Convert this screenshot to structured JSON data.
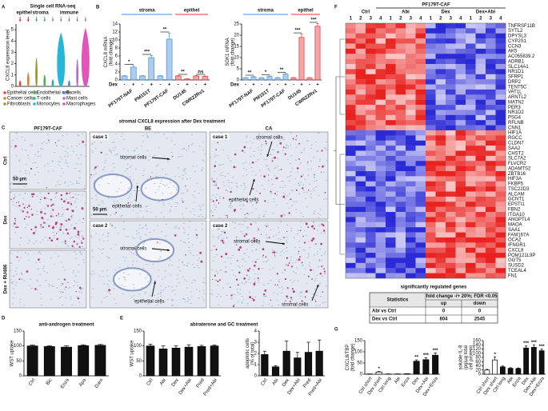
{
  "panels": {
    "labels": [
      "A",
      "B",
      "C",
      "D",
      "E",
      "F",
      "G"
    ]
  },
  "panel_a": {
    "title": "Single cell RNA-seq"
  },
  "chart_data": [
    {
      "type": "violin",
      "ylabel": "CXCL8 expression level",
      "ylim": [
        0,
        5.5
      ],
      "yticks": [
        0,
        1,
        2,
        3,
        4,
        5
      ],
      "sections": [
        {
          "label": "epithel",
          "color": "#d62728",
          "categories": [
            "Epithelial cells",
            "Cancer cells"
          ],
          "colors": [
            "#e8453c",
            "#d4842a"
          ],
          "values": [
            0.5,
            1.2
          ]
        },
        {
          "label": "stroma",
          "color": "#4a90d9",
          "categories": [
            "Fibroblasts",
            "Endothelial cells"
          ],
          "colors": [
            "#9a9a2a",
            "#4caf50"
          ],
          "values": [
            2.5,
            1.0
          ]
        },
        {
          "label": "immune",
          "color": "#888888",
          "categories": [
            "T-cells",
            "Monocytes",
            "B-cells",
            "Mast cells",
            "Macrophages"
          ],
          "colors": [
            "#2bb39a",
            "#27b6d8",
            "#4f7fe0",
            "#b56ad8",
            "#e055b8"
          ],
          "values": [
            0.6,
            4.7,
            0.5,
            2.4,
            5.1
          ]
        }
      ]
    },
    {
      "type": "bar",
      "ylabel": [
        "CXCL8 mRNA",
        "(fold change)"
      ],
      "xlabel": "Dex",
      "categories": [
        "-",
        "+",
        "-",
        "+",
        "-",
        "+",
        "-",
        "+",
        "-",
        "+"
      ],
      "values": [
        1,
        3.2,
        1,
        5.6,
        1,
        10.2,
        1,
        0.25,
        1,
        0.9
      ],
      "errors": [
        0.1,
        0.4,
        0.1,
        0.5,
        0.1,
        1.5,
        0.1,
        0.05,
        0.1,
        0.1
      ],
      "ylim": [
        0,
        14
      ],
      "yticks": [
        0,
        2,
        4,
        6,
        8,
        10,
        12,
        14
      ],
      "significance": [
        "*",
        "***",
        "**",
        "**",
        "ns"
      ],
      "sections": [
        {
          "label": "stroma",
          "color": "#4a90d9",
          "groups": [
            "PF179T-NAF",
            "PM151T",
            "PF179T-CAF"
          ]
        },
        {
          "label": "epithel",
          "color": "#e0393e",
          "groups": [
            "DU145",
            "CWR22Rv1"
          ]
        }
      ]
    },
    {
      "type": "bar",
      "ylabel": [
        "SGK1 mRNA",
        "(fold change)"
      ],
      "xlabel": "Dex",
      "categories": [
        "-",
        "+",
        "-",
        "+",
        "-",
        "+",
        "-",
        "+",
        "-",
        "+"
      ],
      "values": [
        1,
        1.4,
        1,
        1.6,
        1,
        2.6,
        1,
        19,
        1,
        24
      ],
      "errors": [
        0.1,
        0.2,
        0.1,
        0.2,
        0.1,
        0.3,
        0.1,
        1.5,
        0.1,
        1.2
      ],
      "ylim": [
        0,
        25
      ],
      "yticks": [
        0,
        5,
        10,
        15,
        20,
        25
      ],
      "significance": [
        "**",
        "*",
        "**",
        "***",
        "***"
      ],
      "sections": [
        {
          "label": "stroma",
          "color": "#4a90d9",
          "groups": [
            "PF179T-NAF",
            "PM151T",
            "PF179T-CAF"
          ]
        },
        {
          "label": "epithel",
          "color": "#e0393e",
          "groups": [
            "DU145",
            "CWR22Rv1"
          ]
        }
      ]
    },
    {
      "type": "bar",
      "title": "anti-androgen treatment",
      "ylabel": "WST uptake",
      "categories": [
        "Ctrl",
        "Bic",
        "Enza",
        "Apa",
        "Daro"
      ],
      "values": [
        100,
        98,
        96,
        101,
        102
      ],
      "errors": [
        3,
        3,
        5,
        3,
        3
      ],
      "color": "#111111",
      "ylim": [
        0,
        150
      ],
      "yticks": [
        0,
        50,
        100,
        150
      ]
    },
    {
      "type": "bar",
      "title": "abiraterone and GC treatment",
      "ylabel": "WST uptake",
      "categories": [
        "Ctrl",
        "Abi",
        "Dex",
        "Dex+Abi",
        "Pred",
        "Pred+Abi"
      ],
      "values": [
        100,
        90,
        93,
        96,
        98,
        100
      ],
      "errors": [
        6,
        10,
        8,
        8,
        4,
        3
      ],
      "color": "#111111",
      "ylim": [
        0,
        150
      ],
      "yticks": [
        0,
        50,
        100,
        150
      ]
    },
    {
      "type": "bar",
      "ylabel": [
        "apoptotic cells",
        "(% of total)"
      ],
      "categories": [
        "Ctrl",
        "Abi",
        "Dex",
        "Dex+Abi",
        "Pred",
        "Pred+Abi"
      ],
      "values": [
        1.9,
        0.8,
        2.2,
        1.6,
        2.1,
        2.2
      ],
      "errors": [
        0.3,
        0.1,
        0.9,
        0.5,
        0.9,
        1.0
      ],
      "color": "#111111",
      "ylim": [
        0,
        4
      ],
      "yticks": [
        0,
        1,
        2,
        3,
        4
      ]
    },
    {
      "type": "bar",
      "ylabel": [
        "CXCL8/TBP",
        "(fold change)"
      ],
      "categories": [
        "Ctrl short",
        "Dex short",
        "Ctrl long",
        "Abi",
        "Enza",
        "Dex",
        "Dex+Abi",
        "Dex+Enza"
      ],
      "values": [
        1,
        10,
        1,
        1,
        2,
        58,
        65,
        85
      ],
      "errors": [
        0.2,
        2,
        0.2,
        0.2,
        0.5,
        6,
        8,
        10
      ],
      "colors": [
        "#ffffff",
        "#ffffff",
        "#111111",
        "#111111",
        "#111111",
        "#111111",
        "#111111",
        "#111111"
      ],
      "significance": [
        null,
        "*",
        null,
        null,
        null,
        "**",
        "***",
        "***"
      ],
      "ylim": [
        0,
        150
      ],
      "yticks": [
        0,
        50,
        100,
        150
      ]
    },
    {
      "type": "bar",
      "ylabel": [
        "soluble IL-8",
        "(pg/µg total",
        "cell protein)"
      ],
      "categories": [
        "Ctrl short",
        "Dex short",
        "Ctrl long",
        "Abi",
        "Enza",
        "Dex",
        "Dex+Abi",
        "Dex+Enza"
      ],
      "values": [
        20,
        68,
        35,
        28,
        27,
        125,
        128,
        112
      ],
      "errors": [
        3,
        15,
        4,
        3,
        3,
        10,
        12,
        8
      ],
      "colors": [
        "#ffffff",
        "#ffffff",
        "#111111",
        "#111111",
        "#111111",
        "#111111",
        "#111111",
        "#111111"
      ],
      "significance": [
        null,
        "*",
        null,
        null,
        null,
        "***",
        "***",
        "***"
      ],
      "ylim": [
        0,
        160
      ],
      "yticks": [
        0,
        20,
        40,
        60,
        80,
        100,
        120,
        140,
        160
      ]
    }
  ],
  "panel_c": {
    "title": "stromal CXCL8 expression after Dex treatment",
    "columns": [
      "PF179T-CAF",
      "BE",
      "CA"
    ],
    "rows": [
      "Ctrl",
      "Dex",
      "Dex + RU486"
    ],
    "scale_bar": "50 µm",
    "cases": [
      "case 1",
      "case 2"
    ],
    "cell_labels": [
      "stromal cells",
      "epithelial cells"
    ]
  },
  "panel_f": {
    "title": "PF179T-CAF",
    "groups": [
      "Ctrl",
      "Abi",
      "Dex",
      "Dex+Abi"
    ],
    "replicates": [
      "1",
      "2",
      "3",
      "4"
    ],
    "genes_top": [
      "TNFRSF11B",
      "SYTL2",
      "DPYSL3",
      "CYP2S1",
      "CCN3",
      "AK5",
      "AC055839.2",
      "ADRB1",
      "SLC14A1",
      "NR1D1",
      "SFRP1",
      "DRP2",
      "TENT5C",
      "VAT1L",
      "ARNTL2",
      "MATN2",
      "PER3",
      "NR1D2",
      "PSG4",
      "RFLNB",
      "CNN1"
    ],
    "genes_bottom": [
      "HIF1A",
      "RGCC",
      "CLDN7",
      "SAA2",
      "CHST2",
      "SLC7A2",
      "FLVCR2",
      "ADAMTS2",
      "ZBTB16",
      "HIF3A",
      "FKBP5",
      "TSC22D3",
      "ALCAM",
      "GCNT1",
      "EPSTI1",
      "FBN2",
      "ITGA10",
      "ANGPTL4",
      "MAOA",
      "SAA1",
      "FAM167A",
      "OCA2",
      "IFNGR1",
      "CXCL8",
      "POM121L9P",
      "GGT5",
      "SUSD2",
      "TCEAL4",
      "FN1"
    ],
    "table": {
      "title": "significantly regulated genes",
      "header": [
        "Statistics",
        "fold change -/+ 20%; FDR <0.05"
      ],
      "subheader": [
        "up",
        "down"
      ],
      "rows": [
        [
          "Abi vs Ctrl",
          0,
          0
        ],
        [
          "Dex vs Ctrl",
          804,
          2545
        ]
      ]
    }
  }
}
